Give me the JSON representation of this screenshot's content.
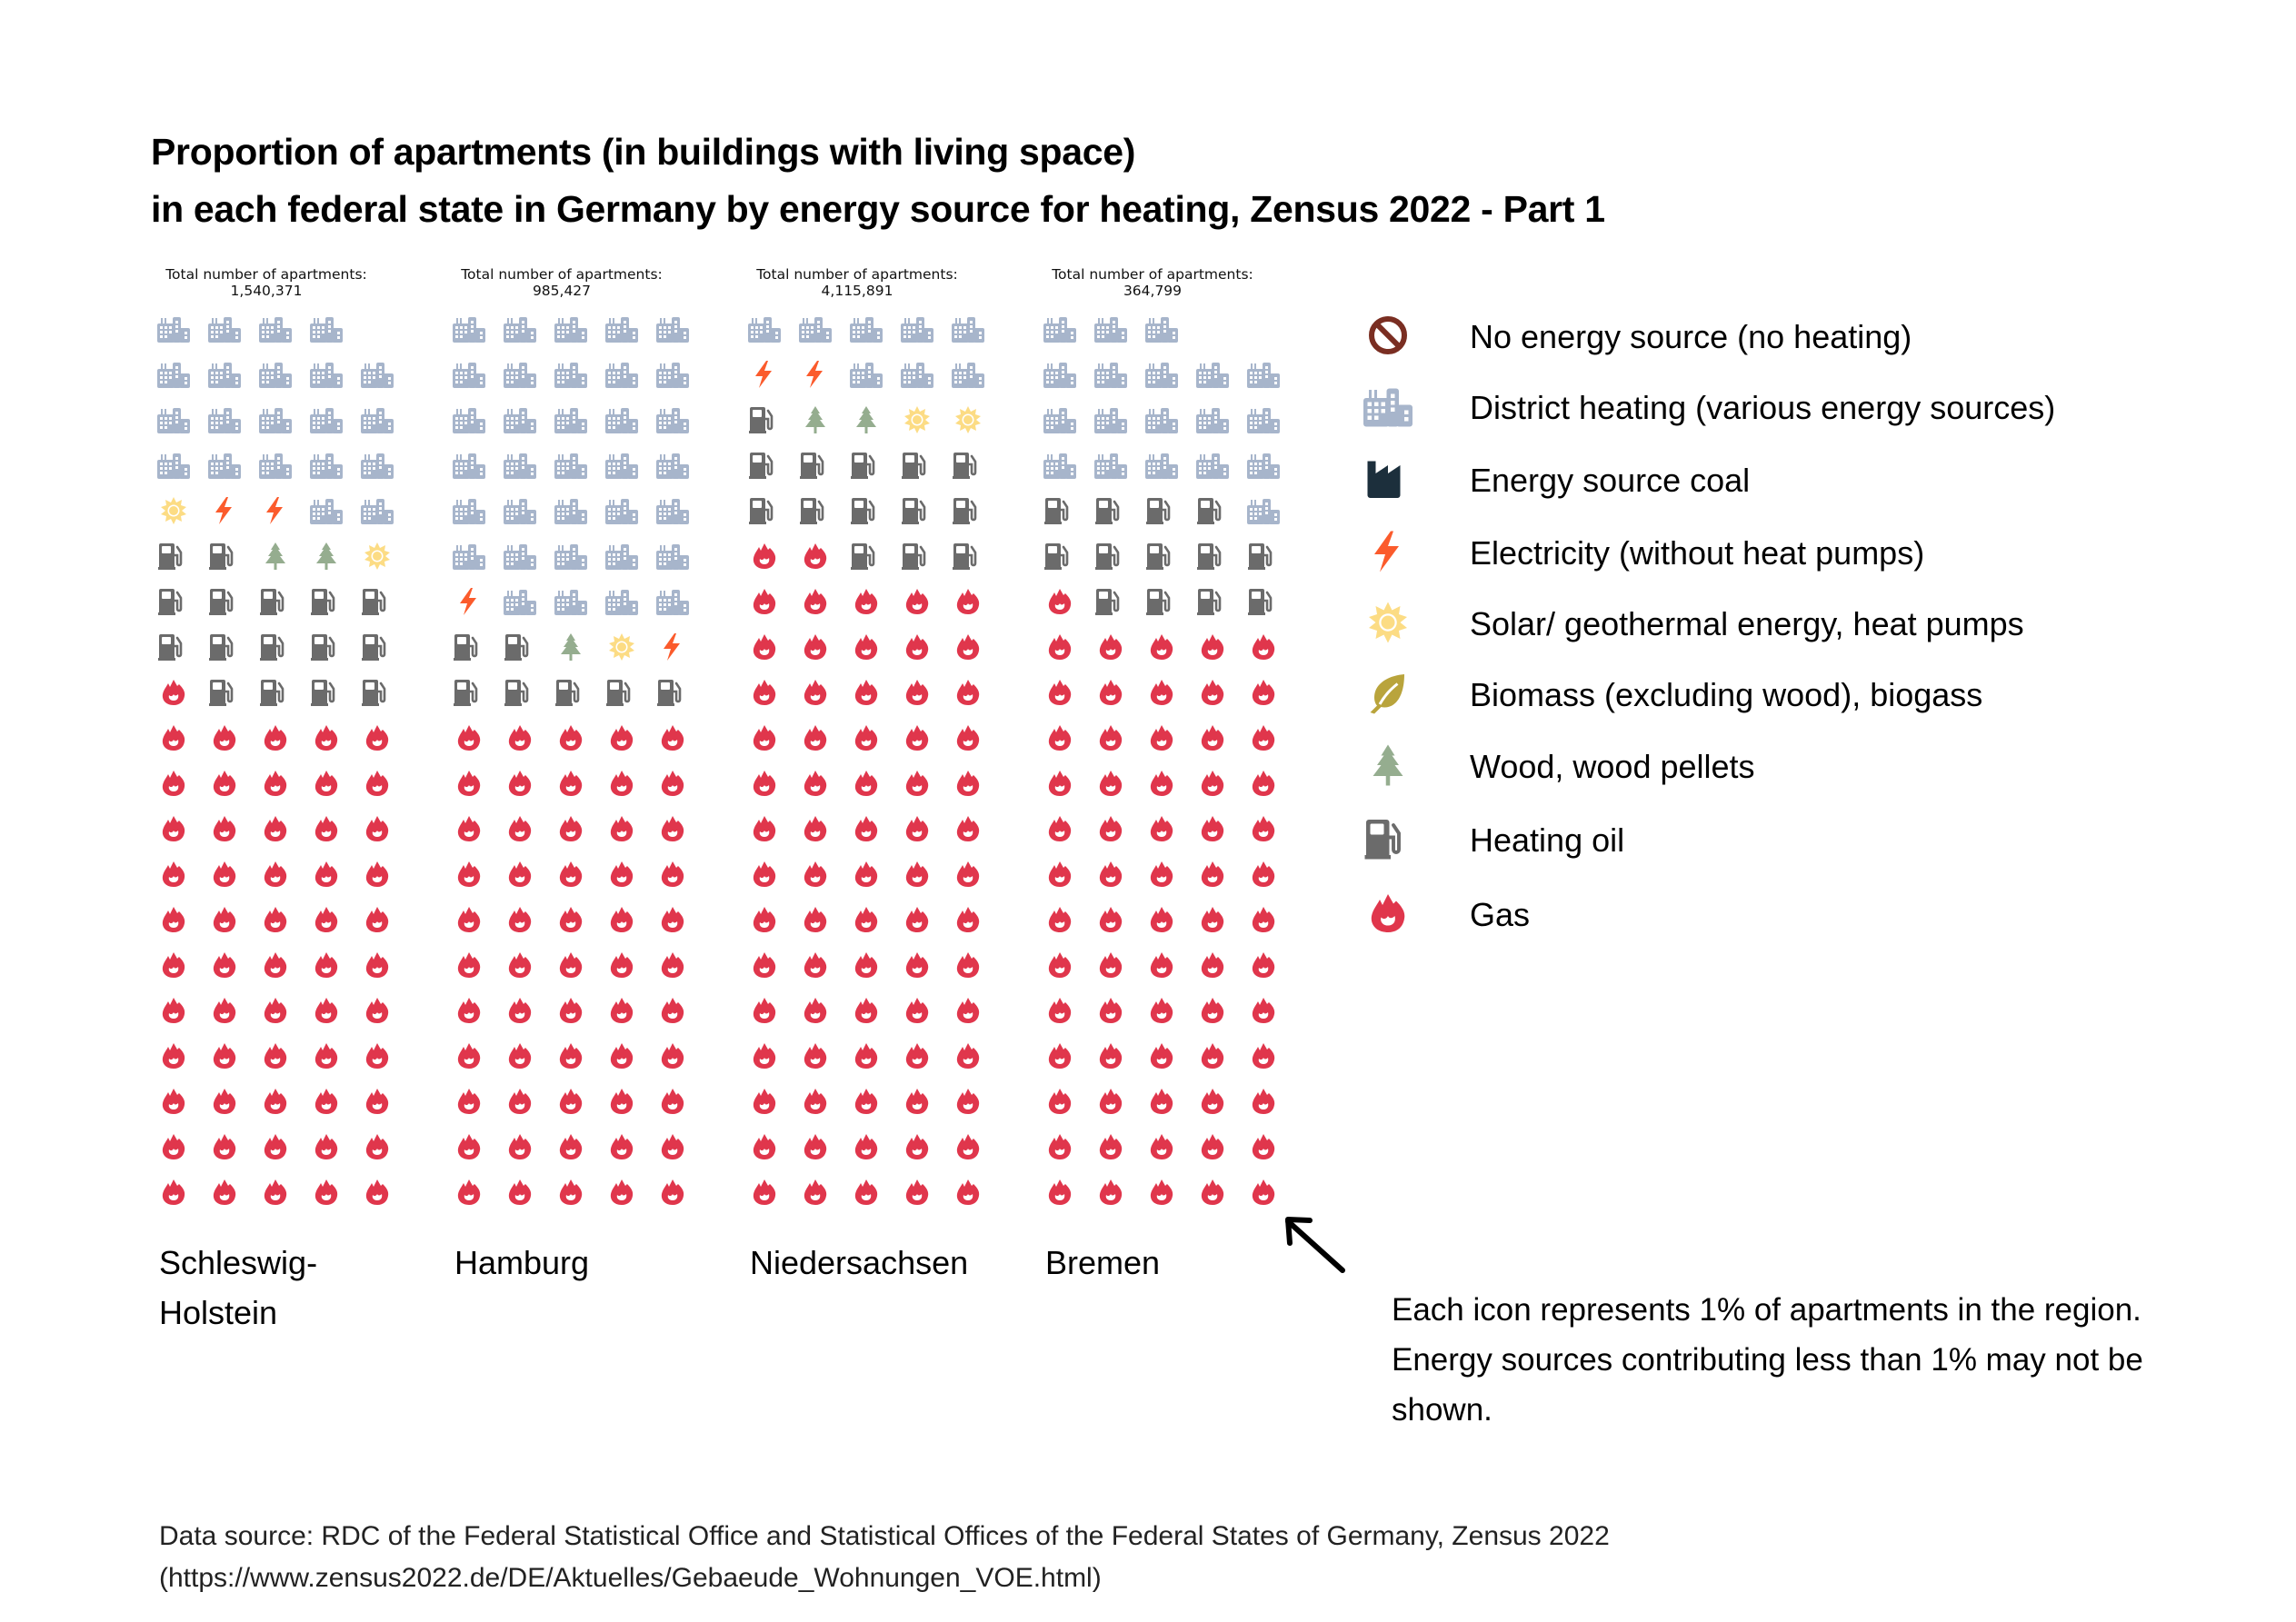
{
  "title": {
    "line1": "Proportion of apartments (in buildings with living space)",
    "line2": "in each federal state in Germany by energy source for heating, Zensus 2022 - Part 1"
  },
  "categories": {
    "none": {
      "label": "No energy source (no heating)",
      "icon": "no-entry-icon",
      "color": "#7a2e22"
    },
    "district": {
      "label": "District heating (various energy sources)",
      "icon": "city-buildings-icon",
      "color": "#a7b5cb"
    },
    "coal": {
      "label": "Energy source coal",
      "icon": "factory-icon",
      "color": "#1c2f3c"
    },
    "electricity": {
      "label": "Electricity (without heat pumps)",
      "icon": "lightning-bolt-icon",
      "color": "#fb5b2c"
    },
    "solar": {
      "label": "Solar/ geothermal energy, heat pumps",
      "icon": "sun-icon",
      "color": "#fcdc84"
    },
    "biomass": {
      "label": "Biomass (excluding wood), biogass",
      "icon": "leaf-icon",
      "color": "#b9a43c"
    },
    "wood": {
      "label": "Wood, wood pellets",
      "icon": "pine-tree-icon",
      "color": "#95ad8f"
    },
    "oil": {
      "label": "Heating oil",
      "icon": "fuel-pump-icon",
      "color": "#6b6b6b"
    },
    "gas": {
      "label": "Gas",
      "icon": "gas-flame-icon",
      "color": "#e0364c"
    }
  },
  "legend_order": [
    "none",
    "district",
    "coal",
    "electricity",
    "solar",
    "biomass",
    "wood",
    "oil",
    "gas"
  ],
  "fill_order": [
    "gas",
    "oil",
    "wood",
    "solar",
    "electricity",
    "district"
  ],
  "total_prefix": "Total number of apartments:",
  "chart_data": {
    "type": "waffle",
    "title": "Proportion of apartments (in buildings with living space) in each federal state in Germany by energy source for heating, Zensus 2022 - Part 1",
    "unit": "percent of apartments (1 icon = 1%)",
    "grid": {
      "columns": 5,
      "rows": 20
    },
    "series": [
      {
        "name": "Schleswig-Holstein",
        "label_lines": [
          "Schleswig-",
          "Holstein"
        ],
        "total": "1,540,371",
        "values": {
          "district": 21,
          "electricity": 2,
          "solar": 2,
          "wood": 2,
          "oil": 16,
          "gas": 56
        }
      },
      {
        "name": "Hamburg",
        "label_lines": [
          "Hamburg"
        ],
        "total": "985,427",
        "values": {
          "district": 34,
          "electricity": 2,
          "solar": 1,
          "wood": 1,
          "oil": 7,
          "gas": 55
        }
      },
      {
        "name": "Niedersachsen",
        "label_lines": [
          "Niedersachsen"
        ],
        "total": "4,115,891",
        "values": {
          "district": 8,
          "electricity": 2,
          "solar": 2,
          "wood": 2,
          "oil": 14,
          "gas": 72
        }
      },
      {
        "name": "Bremen",
        "label_lines": [
          "Bremen"
        ],
        "total": "364,799",
        "values": {
          "district": 19,
          "oil": 13,
          "gas": 66
        }
      }
    ]
  },
  "note": "Each icon represents 1% of apartments in the region. Energy sources contributing less than 1% may not be shown.",
  "source": {
    "line1": "Data source: RDC of the Federal Statistical Office and Statistical Offices of the Federal States of Germany, Zensus 2022",
    "line2": "(https://www.zensus2022.de/DE/Aktuelles/Gebaeude_Wohnungen_VOE.html)"
  }
}
